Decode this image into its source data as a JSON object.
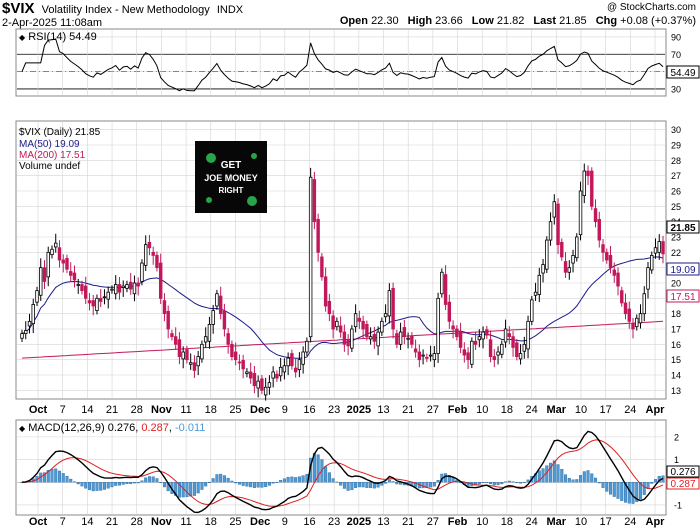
{
  "header": {
    "symbol": "$VIX",
    "name": "Volatility Index - New Methodology",
    "exchange": "INDX",
    "copyright": "@ StockCharts.com",
    "date_time": "2-Apr-2025 11:08am",
    "open_label": "Open",
    "open": "22.30",
    "high_label": "High",
    "high": "23.66",
    "low_label": "Low",
    "low": "21.82",
    "last_label": "Last",
    "last": "21.85",
    "chg_label": "Chg",
    "chg": "+0.08 (+0.37%)"
  },
  "rsi": {
    "label": "RSI(14) 54.49",
    "ticks": [
      "90",
      "70",
      "50",
      "30"
    ],
    "last_badge": "54.49"
  },
  "price": {
    "legend": [
      {
        "text": "$VIX (Daily) 21.85",
        "color": "#000000"
      },
      {
        "text": "MA(50) 19.09",
        "color": "#1c1c8a"
      },
      {
        "text": "MA(200) 17.51",
        "color": "#c2185b"
      },
      {
        "text": "Volume undef",
        "color": "#000000"
      }
    ],
    "ticks": [
      "30",
      "29",
      "28",
      "27",
      "26",
      "25",
      "24",
      "23",
      "22",
      "21",
      "20",
      "19",
      "18",
      "17",
      "16",
      "15",
      "14",
      "13"
    ],
    "badges": {
      "last": "21.85",
      "ma50": "19.09",
      "ma200": "17.51"
    },
    "logo": {
      "line1": "GET",
      "line2": "JOE MONEY",
      "line3": "RIGHT"
    }
  },
  "macd": {
    "label_prefix": "MACD(12,26,9)",
    "macd": "0.276",
    "signal": "0.287",
    "hist": "-0.011",
    "ticks": [
      "2",
      "1",
      "0",
      "-1"
    ],
    "badge_macd": "0.276",
    "badge_sig": "0.287"
  },
  "x_labels": [
    "Oct",
    "7",
    "14",
    "21",
    "28",
    "Nov",
    "11",
    "18",
    "25",
    "Dec",
    "9",
    "16",
    "23",
    "2025",
    "13",
    "21",
    "27",
    "Feb",
    "10",
    "18",
    "24",
    "Mar",
    "10",
    "17",
    "24",
    "Apr"
  ],
  "colors": {
    "up": "#000000",
    "down": "#c2185b",
    "ma50": "#1c1c8a",
    "ma200": "#c2185b",
    "hist": "#4e9ad6",
    "signal": "#e02020",
    "grid": "#d4d4d4"
  },
  "chart_data": {
    "type": "candlestick",
    "title": "$VIX Volatility Index - New Methodology",
    "ylim": [
      12.5,
      30.5
    ],
    "candles_close": [
      16.7,
      16.9,
      17.5,
      18.6,
      19.5,
      21.0,
      20.1,
      22.0,
      22.2,
      22.6,
      21.5,
      21.3,
      20.9,
      20.5,
      20.2,
      19.9,
      19.5,
      19.0,
      18.7,
      18.5,
      19.0,
      18.8,
      19.1,
      19.4,
      19.6,
      19.9,
      19.4,
      19.8,
      19.9,
      19.6,
      20.0,
      19.8,
      21.3,
      22.5,
      22.3,
      21.8,
      21.0,
      19.0,
      18.0,
      17.0,
      16.5,
      16.0,
      15.2,
      15.5,
      15.0,
      14.8,
      14.3,
      15.2,
      16.0,
      16.5,
      17.3,
      18.2,
      19.3,
      18.0,
      17.0,
      16.0,
      15.2,
      15.0,
      14.8,
      14.4,
      14.2,
      13.8,
      13.3,
      13.6,
      13.0,
      13.2,
      13.5,
      14.2,
      13.8,
      14.5,
      14.6,
      15.1,
      14.6,
      14.2,
      15.0,
      15.5,
      16.2,
      26.9,
      24.0,
      22.0,
      20.4,
      18.5,
      18.0,
      17.0,
      17.5,
      16.8,
      16.0,
      15.9,
      17.0,
      18.0,
      17.5,
      17.0,
      16.5,
      16.5,
      16.2,
      16.8,
      17.5,
      18.0,
      19.5,
      17.0,
      16.0,
      16.8,
      16.5,
      16.4,
      16.0,
      15.5,
      15.0,
      15.3,
      15.1,
      15.3,
      15.4,
      19.0,
      20.7,
      18.6,
      17.5,
      17.0,
      16.5,
      15.8,
      15.3,
      15.0,
      16.2,
      16.0,
      16.5,
      16.8,
      16.6,
      15.2,
      15.0,
      15.5,
      16.0,
      17.0,
      16.5,
      15.8,
      15.2,
      15.4,
      16.0,
      17.5,
      18.9,
      19.4,
      20.5,
      21.2,
      22.8,
      24.0,
      25.3,
      22.5,
      21.7,
      20.7,
      21.0,
      21.8,
      23.0,
      26.0,
      27.3,
      27.0,
      25.0,
      24.0,
      22.8,
      22.0,
      21.5,
      21.0,
      20.5,
      19.8,
      18.7,
      18.0,
      17.5,
      17.0,
      17.7,
      18.0,
      19.3,
      21.0,
      21.8,
      22.3,
      22.7,
      21.9
    ],
    "macd": {
      "last": 0.276,
      "signal": 0.287,
      "hist": -0.011,
      "ylim": [
        -1.4,
        2.7
      ]
    },
    "rsi": {
      "last": 54.49,
      "ylim": [
        23,
        98
      ]
    }
  }
}
